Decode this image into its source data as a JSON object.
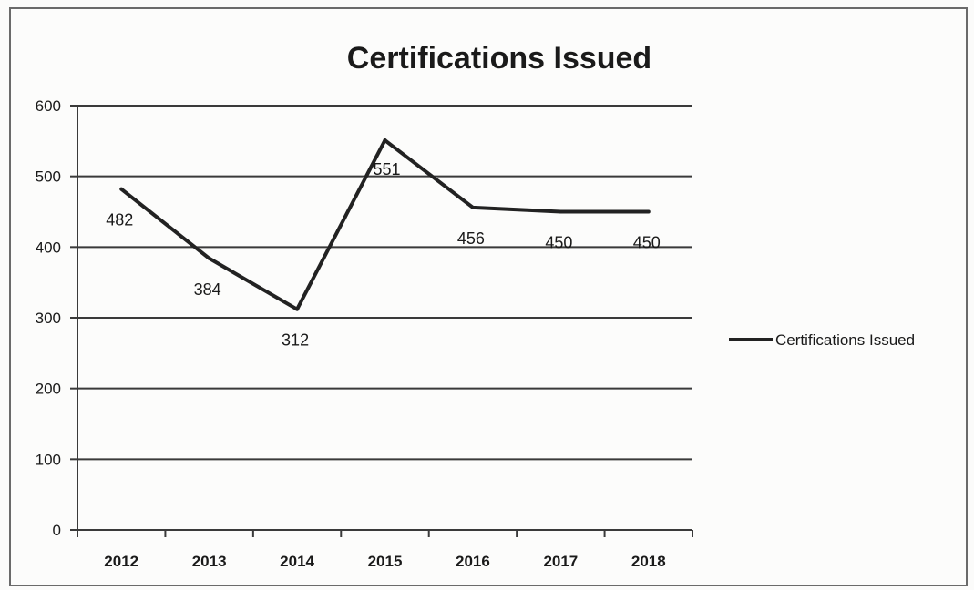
{
  "chart_data": {
    "type": "line",
    "title": "Certifications Issued",
    "categories": [
      "2012",
      "2013",
      "2014",
      "2015",
      "2016",
      "2017",
      "2018"
    ],
    "series": [
      {
        "name": "Certifications Issued",
        "values": [
          482,
          384,
          312,
          551,
          456,
          450,
          450
        ],
        "data_labels": [
          "482",
          "384",
          "312",
          "551",
          "456",
          "450",
          "450"
        ]
      }
    ],
    "yticks": [
      "0",
      "100",
      "200",
      "300",
      "400",
      "500",
      "600"
    ],
    "ylim": [
      0,
      600
    ],
    "grid": true,
    "legend_position": "right",
    "colors": {
      "line": "#222222",
      "grid": "#3a3a3a"
    }
  }
}
